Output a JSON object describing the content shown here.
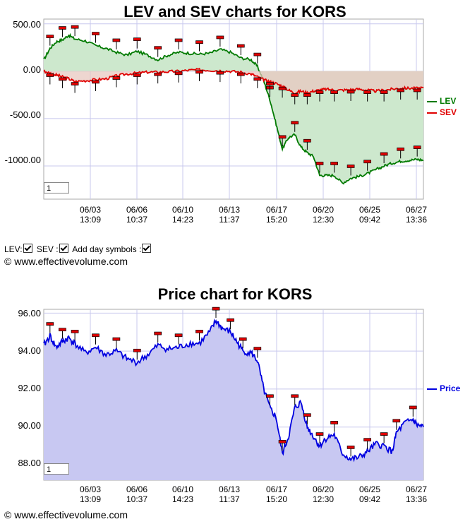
{
  "charts": {
    "lev": {
      "title": "LEV and SEV charts for KORS",
      "y_ticks": [
        "500.00",
        "0.00",
        "-500.00",
        "-1000.00"
      ],
      "zoom": "1"
    },
    "price": {
      "title": "Price chart for KORS",
      "y_ticks": [
        "96.00",
        "94.00",
        "92.00",
        "90.00",
        "88.00"
      ],
      "zoom": "1"
    }
  },
  "x_ticks": [
    {
      "date": "06/03",
      "time": "13:09"
    },
    {
      "date": "06/06",
      "time": "10:37"
    },
    {
      "date": "06/10",
      "time": "14:23"
    },
    {
      "date": "06/13",
      "time": "11:37"
    },
    {
      "date": "06/17",
      "time": "15:20"
    },
    {
      "date": "06/20",
      "time": "12:30"
    },
    {
      "date": "06/25",
      "time": "09:42"
    },
    {
      "date": "06/27",
      "time": "13:36"
    }
  ],
  "options": {
    "lev_label": "LEV:",
    "sev_label": "SEV :",
    "day_symbols_label": "Add day symbols :"
  },
  "copyright": "© www.effectivevolume.com",
  "colors": {
    "lev": "#007a00",
    "sev": "#e00000",
    "price": "#0000e0",
    "lev_fill": "#cde8cd",
    "sev_fill": "#e8c8c0",
    "price_fill": "#c8c8f2"
  },
  "chart_data": [
    {
      "type": "line",
      "title": "LEV and SEV charts for KORS",
      "xlabel": "",
      "ylabel": "",
      "ylim": [
        -1350,
        550
      ],
      "grid": true,
      "legend_placement": "right",
      "x_tick_labels": [
        "06/03 13:09",
        "06/06 10:37",
        "06/10 14:23",
        "06/13 11:37",
        "06/17 15:20",
        "06/20 12:30",
        "06/25 09:42",
        "06/27 13:36"
      ],
      "series": [
        {
          "name": "LEV",
          "points": [
            [
              0,
              120
            ],
            [
              0.3,
              240
            ],
            [
              0.6,
              310
            ],
            [
              0.9,
              330
            ],
            [
              1.2,
              380
            ],
            [
              1.5,
              340
            ],
            [
              2.0,
              320
            ],
            [
              2.5,
              270
            ],
            [
              3.0,
              240
            ],
            [
              3.5,
              200
            ],
            [
              4.0,
              170
            ],
            [
              4.5,
              210
            ],
            [
              5.0,
              170
            ],
            [
              5.5,
              120
            ],
            [
              6.0,
              170
            ],
            [
              6.5,
              200
            ],
            [
              7.0,
              190
            ],
            [
              7.5,
              180
            ],
            [
              8.0,
              190
            ],
            [
              8.5,
              230
            ],
            [
              9.0,
              200
            ],
            [
              9.5,
              140
            ],
            [
              10.0,
              120
            ],
            [
              10.3,
              50
            ],
            [
              10.6,
              -100
            ],
            [
              10.9,
              -300
            ],
            [
              11.2,
              -560
            ],
            [
              11.5,
              -820
            ],
            [
              11.8,
              -700
            ],
            [
              12.1,
              -670
            ],
            [
              12.4,
              -800
            ],
            [
              12.7,
              -860
            ],
            [
              13.0,
              -900
            ],
            [
              13.3,
              -1100
            ],
            [
              13.6,
              -1100
            ],
            [
              14.0,
              -1100
            ],
            [
              14.4,
              -1180
            ],
            [
              14.8,
              -1130
            ],
            [
              15.2,
              -1110
            ],
            [
              15.6,
              -1080
            ],
            [
              16.0,
              -1040
            ],
            [
              16.4,
              -1000
            ],
            [
              16.8,
              -970
            ],
            [
              17.2,
              -950
            ],
            [
              17.6,
              -940
            ],
            [
              18.0,
              -930
            ],
            [
              18.3,
              -940
            ]
          ]
        },
        {
          "name": "SEV",
          "points": [
            [
              0,
              0
            ],
            [
              0.3,
              -20
            ],
            [
              0.6,
              -40
            ],
            [
              0.9,
              -60
            ],
            [
              1.2,
              -80
            ],
            [
              1.5,
              -110
            ],
            [
              2.0,
              -100
            ],
            [
              2.5,
              -90
            ],
            [
              3.0,
              -80
            ],
            [
              3.5,
              -50
            ],
            [
              4.0,
              -30
            ],
            [
              4.5,
              -20
            ],
            [
              5.0,
              -10
            ],
            [
              5.5,
              -10
            ],
            [
              6.0,
              -5
            ],
            [
              6.5,
              0
            ],
            [
              7.0,
              10
            ],
            [
              7.5,
              15
            ],
            [
              8.0,
              10
            ],
            [
              8.5,
              5
            ],
            [
              9.0,
              0
            ],
            [
              9.5,
              -10
            ],
            [
              10.0,
              -30
            ],
            [
              10.3,
              -60
            ],
            [
              10.6,
              -90
            ],
            [
              10.9,
              -110
            ],
            [
              11.2,
              -130
            ],
            [
              11.5,
              -160
            ],
            [
              11.8,
              -200
            ],
            [
              12.1,
              -230
            ],
            [
              12.4,
              -210
            ],
            [
              12.7,
              -230
            ],
            [
              13.0,
              -210
            ],
            [
              13.3,
              -200
            ],
            [
              13.6,
              -190
            ],
            [
              14.0,
              -200
            ],
            [
              14.4,
              -200
            ],
            [
              14.8,
              -195
            ],
            [
              15.2,
              -190
            ],
            [
              15.6,
              -200
            ],
            [
              16.0,
              -210
            ],
            [
              16.4,
              -200
            ],
            [
              16.8,
              -190
            ],
            [
              17.2,
              -180
            ],
            [
              17.6,
              -180
            ],
            [
              18.0,
              -180
            ],
            [
              18.3,
              -175
            ]
          ]
        }
      ]
    },
    {
      "type": "area",
      "title": "Price chart for KORS",
      "xlabel": "",
      "ylabel": "",
      "ylim": [
        87.2,
        96.2
      ],
      "grid": true,
      "legend_placement": "right",
      "x_tick_labels": [
        "06/03 13:09",
        "06/06 10:37",
        "06/10 14:23",
        "06/13 11:37",
        "06/17 15:20",
        "06/20 12:30",
        "06/25 09:42",
        "06/27 13:36"
      ],
      "series": [
        {
          "name": "Price",
          "points": [
            [
              0,
              94.3
            ],
            [
              0.3,
              94.8
            ],
            [
              0.6,
              94.2
            ],
            [
              0.9,
              94.5
            ],
            [
              1.2,
              94.7
            ],
            [
              1.5,
              94.4
            ],
            [
              2.0,
              93.9
            ],
            [
              2.5,
              94.2
            ],
            [
              3.0,
              93.8
            ],
            [
              3.5,
              94.0
            ],
            [
              4.0,
              93.6
            ],
            [
              4.5,
              93.4
            ],
            [
              5.0,
              93.8
            ],
            [
              5.5,
              94.3
            ],
            [
              6.0,
              94.1
            ],
            [
              6.5,
              94.2
            ],
            [
              7.0,
              94.4
            ],
            [
              7.5,
              94.4
            ],
            [
              8.0,
              95.0
            ],
            [
              8.3,
              95.6
            ],
            [
              8.6,
              95.2
            ],
            [
              9.0,
              95.0
            ],
            [
              9.3,
              94.5
            ],
            [
              9.6,
              94.0
            ],
            [
              10.0,
              93.9
            ],
            [
              10.3,
              93.5
            ],
            [
              10.6,
              92.0
            ],
            [
              10.9,
              91.0
            ],
            [
              11.2,
              90.5
            ],
            [
              11.5,
              88.6
            ],
            [
              11.8,
              89.5
            ],
            [
              12.1,
              91.0
            ],
            [
              12.4,
              91.3
            ],
            [
              12.7,
              90.0
            ],
            [
              13.0,
              89.5
            ],
            [
              13.3,
              89.0
            ],
            [
              13.6,
              89.4
            ],
            [
              14.0,
              89.6
            ],
            [
              14.4,
              88.6
            ],
            [
              14.8,
              88.3
            ],
            [
              15.2,
              88.4
            ],
            [
              15.6,
              88.7
            ],
            [
              16.0,
              89.1
            ],
            [
              16.4,
              89.0
            ],
            [
              16.8,
              88.7
            ],
            [
              17.0,
              89.7
            ],
            [
              17.4,
              90.2
            ],
            [
              17.8,
              90.4
            ],
            [
              18.0,
              90.1
            ],
            [
              18.3,
              90.0
            ]
          ]
        }
      ]
    }
  ]
}
